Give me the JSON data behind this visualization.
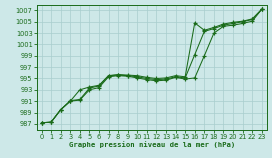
{
  "background_color": "#cde8e8",
  "grid_color": "#a8cece",
  "line_color": "#1a6b1a",
  "ylim": [
    986,
    1008
  ],
  "xlim": [
    0,
    23
  ],
  "yticks": [
    987,
    989,
    991,
    993,
    995,
    997,
    999,
    1001,
    1003,
    1005,
    1007
  ],
  "xticks": [
    0,
    1,
    2,
    3,
    4,
    5,
    6,
    7,
    8,
    9,
    10,
    11,
    12,
    13,
    14,
    15,
    16,
    17,
    18,
    19,
    20,
    21,
    22,
    23
  ],
  "xlabel": "Graphe pression niveau de la mer (hPa)",
  "line1": [
    987.2,
    987.3,
    989.5,
    991.0,
    991.2,
    993.0,
    993.4,
    995.3,
    995.5,
    995.4,
    995.1,
    994.8,
    994.6,
    994.7,
    995.2,
    994.9,
    995.1,
    999.0,
    1003.0,
    1004.2,
    1004.4,
    1004.7,
    1005.1,
    1007.2
  ],
  "line2": [
    987.2,
    987.3,
    989.5,
    991.1,
    991.3,
    993.3,
    993.7,
    995.5,
    995.6,
    995.5,
    995.3,
    995.0,
    994.8,
    994.9,
    995.3,
    995.1,
    999.2,
    1003.3,
    1003.8,
    1004.4,
    1004.7,
    1005.0,
    1005.4,
    1007.2
  ],
  "line3": [
    987.2,
    987.3,
    989.5,
    991.0,
    993.0,
    993.5,
    993.8,
    995.5,
    995.7,
    995.6,
    995.5,
    995.2,
    995.0,
    995.1,
    995.5,
    995.3,
    1004.8,
    1003.5,
    1004.0,
    1004.6,
    1004.9,
    1005.1,
    1005.5,
    1007.2
  ]
}
